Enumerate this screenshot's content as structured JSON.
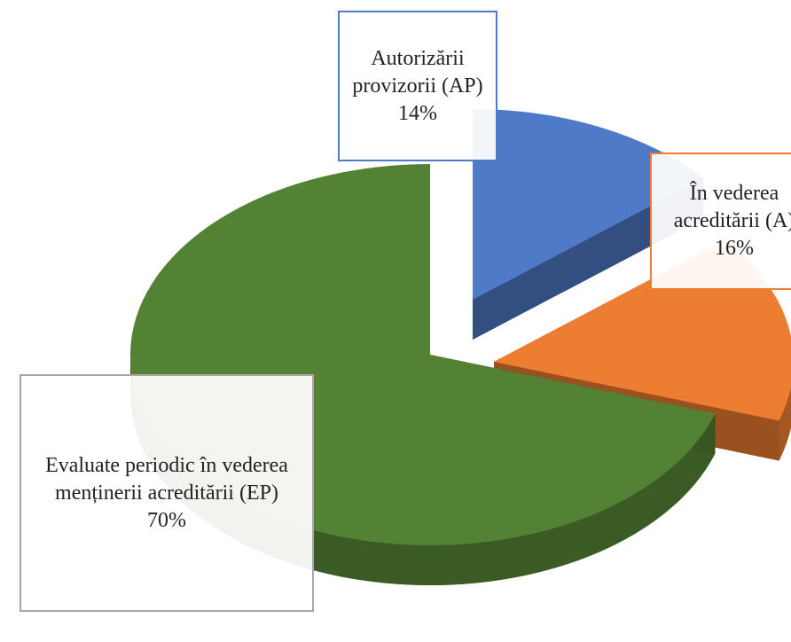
{
  "chart_data": {
    "type": "pie",
    "categories": [
      "Autorizării provizorii (AP)",
      "În vederea acreditării (A)",
      "Evaluate periodic în vederea menținerii acreditării (EP)"
    ],
    "values": [
      14,
      16,
      70
    ],
    "value_labels": [
      "14%",
      "16%",
      "70%"
    ],
    "colors": [
      "#4f7ac7",
      "#ed7d31",
      "#548235"
    ]
  }
}
